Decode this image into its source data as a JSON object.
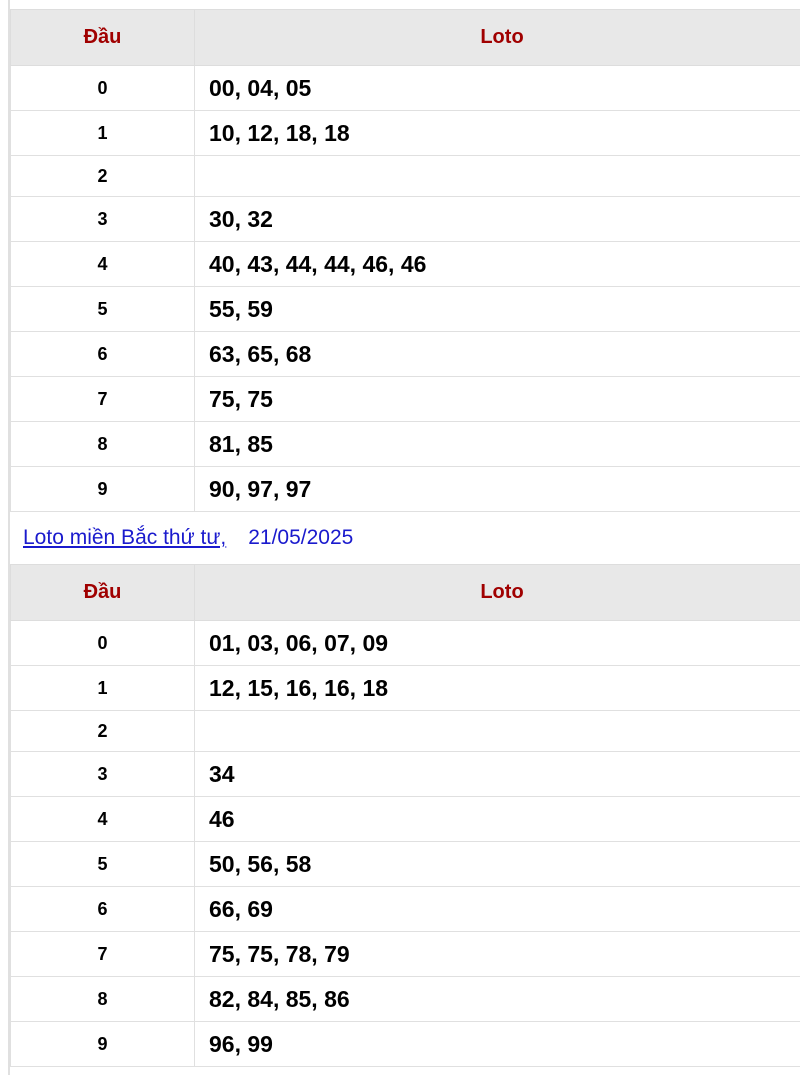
{
  "tables": [
    {
      "headers": {
        "dau": "Đầu",
        "loto": "Loto"
      },
      "rows": [
        {
          "dau": "0",
          "loto": "00, 04, 05"
        },
        {
          "dau": "1",
          "loto": "10, 12, 18, 18"
        },
        {
          "dau": "2",
          "loto": ""
        },
        {
          "dau": "3",
          "loto": "30, 32"
        },
        {
          "dau": "4",
          "loto": "40, 43, 44, 44, 46, 46"
        },
        {
          "dau": "5",
          "loto": "55, 59"
        },
        {
          "dau": "6",
          "loto": "63, 65, 68"
        },
        {
          "dau": "7",
          "loto": "75, 75"
        },
        {
          "dau": "8",
          "loto": "81, 85"
        },
        {
          "dau": "9",
          "loto": "90, 97, 97"
        }
      ]
    },
    {
      "caption": {
        "link": "Loto miền Bắc thứ tư,",
        "date": "21/05/2025"
      },
      "headers": {
        "dau": "Đầu",
        "loto": "Loto"
      },
      "rows": [
        {
          "dau": "0",
          "loto": "01, 03, 06, 07, 09"
        },
        {
          "dau": "1",
          "loto": "12, 15, 16, 16, 18"
        },
        {
          "dau": "2",
          "loto": ""
        },
        {
          "dau": "3",
          "loto": "34"
        },
        {
          "dau": "4",
          "loto": "46"
        },
        {
          "dau": "5",
          "loto": "50, 56, 58"
        },
        {
          "dau": "6",
          "loto": "66, 69"
        },
        {
          "dau": "7",
          "loto": "75, 75, 78, 79"
        },
        {
          "dau": "8",
          "loto": "82, 84, 85, 86"
        },
        {
          "dau": "9",
          "loto": "96, 99"
        }
      ]
    }
  ],
  "colors": {
    "header_text": "#a00000",
    "header_bg": "#e8e8e8",
    "link": "#1a1acd"
  }
}
